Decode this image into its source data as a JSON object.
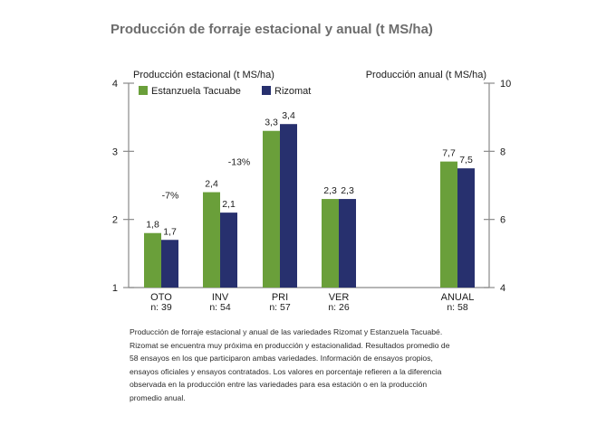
{
  "title": "Producción de forraje estacional y anual (t MS/ha)",
  "colors": {
    "estanzuela": "#6a9f3a",
    "rizomat": "#27306e",
    "axis": "#8a8a8a"
  },
  "chart_data": {
    "type": "bar",
    "title": "Producción de forraje estacional y anual (t MS/ha)",
    "left_axis": {
      "label": "Producción estacional (t MS/ha)",
      "ylim": [
        1,
        4
      ],
      "ticks": [
        "1",
        "2",
        "3",
        "4"
      ]
    },
    "right_axis": {
      "label": "Producción anual (t MS/ha)",
      "ylim": [
        4,
        10
      ],
      "ticks": [
        "4",
        "6",
        "8",
        "10"
      ]
    },
    "legend": {
      "position": "top-left"
    },
    "grid": false,
    "series": [
      {
        "name": "Estanzuela Tacuabe",
        "color": "#6a9f3a"
      },
      {
        "name": "Rizomat",
        "color": "#27306e"
      }
    ],
    "categories": [
      {
        "label": "OTO",
        "n": "n: 39",
        "axis": "left",
        "values": [
          1.8,
          1.7
        ],
        "value_labels": [
          "1,8",
          "1,7"
        ],
        "diff": "-7%"
      },
      {
        "label": "INV",
        "n": "n: 54",
        "axis": "left",
        "values": [
          2.4,
          2.1
        ],
        "value_labels": [
          "2,4",
          "2,1"
        ],
        "diff": "-13%"
      },
      {
        "label": "PRI",
        "n": "n: 57",
        "axis": "left",
        "values": [
          3.3,
          3.4
        ],
        "value_labels": [
          "3,3",
          "3,4"
        ],
        "diff": ""
      },
      {
        "label": "VER",
        "n": "n: 26",
        "axis": "left",
        "values": [
          2.3,
          2.3
        ],
        "value_labels": [
          "2,3",
          "2,3"
        ],
        "diff": ""
      },
      {
        "label": "ANUAL",
        "n": "n: 58",
        "axis": "right",
        "values": [
          7.7,
          7.5
        ],
        "value_labels": [
          "7,7",
          "7,5"
        ],
        "diff": ""
      }
    ]
  },
  "caption": [
    "Producción de forraje estacional y anual de las variedades Rizomat y Estanzuela Tacuabé.",
    "Rizomat se encuentra muy próxima en producción y estacionalidad. Resultados promedio de",
    "58 ensayos en los que participaron ambas variedades. Información de ensayos propios,",
    "ensayos oficiales y ensayos contratados. Los valores en porcentaje refieren a la diferencia",
    "observada en la producción entre las variedades para esa estación o en la producción",
    "promedio anual."
  ]
}
